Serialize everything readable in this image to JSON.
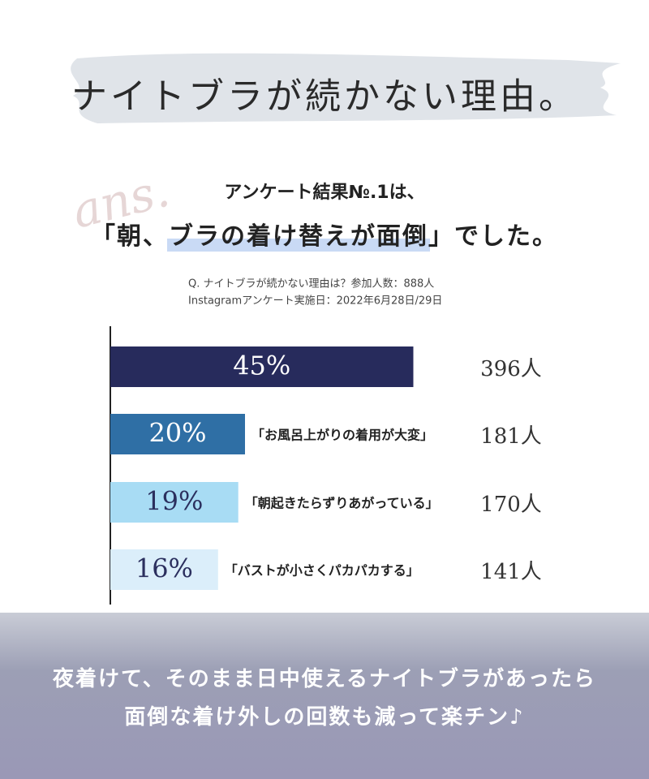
{
  "header": {
    "title": "ナイトブラが続かない理由。"
  },
  "intro": {
    "script_mark": "ans.",
    "lead": "アンケート結果№.1は、",
    "answer": [
      "「朝、",
      "ブラの着け替えが面倒",
      "」でした。"
    ]
  },
  "notes": [
    "Q. ナイトブラが続かない理由は？参加人数：888人",
    "Instagramアンケート実施日：2022年6月28日/29日"
  ],
  "chart_data": {
    "type": "bar",
    "orientation": "horizontal",
    "categories": [
      null,
      "「お風呂上がりの着用が大変」",
      "「朝起きたらずりあがっている」",
      "「バストが小さくパカパカする」"
    ],
    "values": [
      45,
      20,
      19,
      16
    ],
    "value_labels": [
      "45%",
      "20%",
      "19%",
      "16%"
    ],
    "colors": [
      "#272b5c",
      "#2f6fa5",
      "#a8dcf4",
      "#dbeefa"
    ],
    "label_colors": [
      "#ffffff",
      "#ffffff",
      "#2b2f5e",
      "#2b2f5e"
    ],
    "counts": [
      396,
      181,
      170,
      141
    ],
    "count_labels": [
      "396人",
      "181人",
      "170人",
      "141人"
    ],
    "xlim": [
      0,
      80
    ]
  },
  "footer": {
    "lines": [
      "夜着けて、そのまま日中使えるナイトブラがあったら",
      "面倒な着け外しの回数も減って楽チン♪"
    ]
  }
}
